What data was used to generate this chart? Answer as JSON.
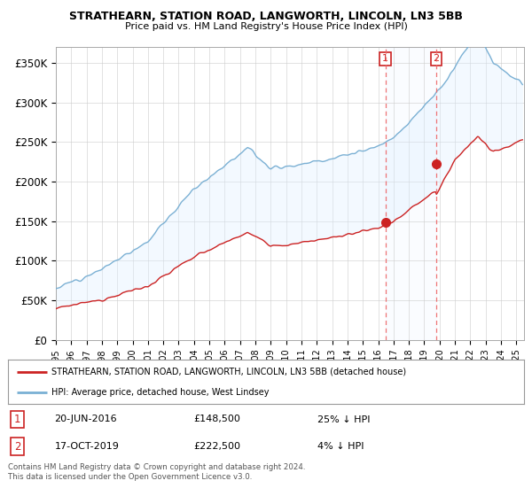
{
  "title": "STRATHEARN, STATION ROAD, LANGWORTH, LINCOLN, LN3 5BB",
  "subtitle": "Price paid vs. HM Land Registry's House Price Index (HPI)",
  "ylabel_ticks": [
    "£0",
    "£50K",
    "£100K",
    "£150K",
    "£200K",
    "£250K",
    "£300K",
    "£350K"
  ],
  "ytick_values": [
    0,
    50000,
    100000,
    150000,
    200000,
    250000,
    300000,
    350000
  ],
  "ylim": [
    0,
    370000
  ],
  "xlim_start": 1995,
  "xlim_end": 2025.5,
  "transaction1": {
    "date": "20-JUN-2016",
    "year": 2016.47,
    "price": 148500,
    "label": "1",
    "note": "25% ↓ HPI"
  },
  "transaction2": {
    "date": "17-OCT-2019",
    "year": 2019.79,
    "price": 222500,
    "label": "2",
    "note": "4% ↓ HPI"
  },
  "legend_line1": "STRATHEARN, STATION ROAD, LANGWORTH, LINCOLN, LN3 5BB (detached house)",
  "legend_line2": "HPI: Average price, detached house, West Lindsey",
  "footer1": "Contains HM Land Registry data © Crown copyright and database right 2024.",
  "footer2": "This data is licensed under the Open Government Licence v3.0.",
  "hpi_color": "#7ab0d4",
  "price_color": "#cc2222",
  "dashed_line_color": "#ee6666",
  "shaded_color": "#ddeeff",
  "background_color": "#ffffff",
  "grid_color": "#cccccc"
}
